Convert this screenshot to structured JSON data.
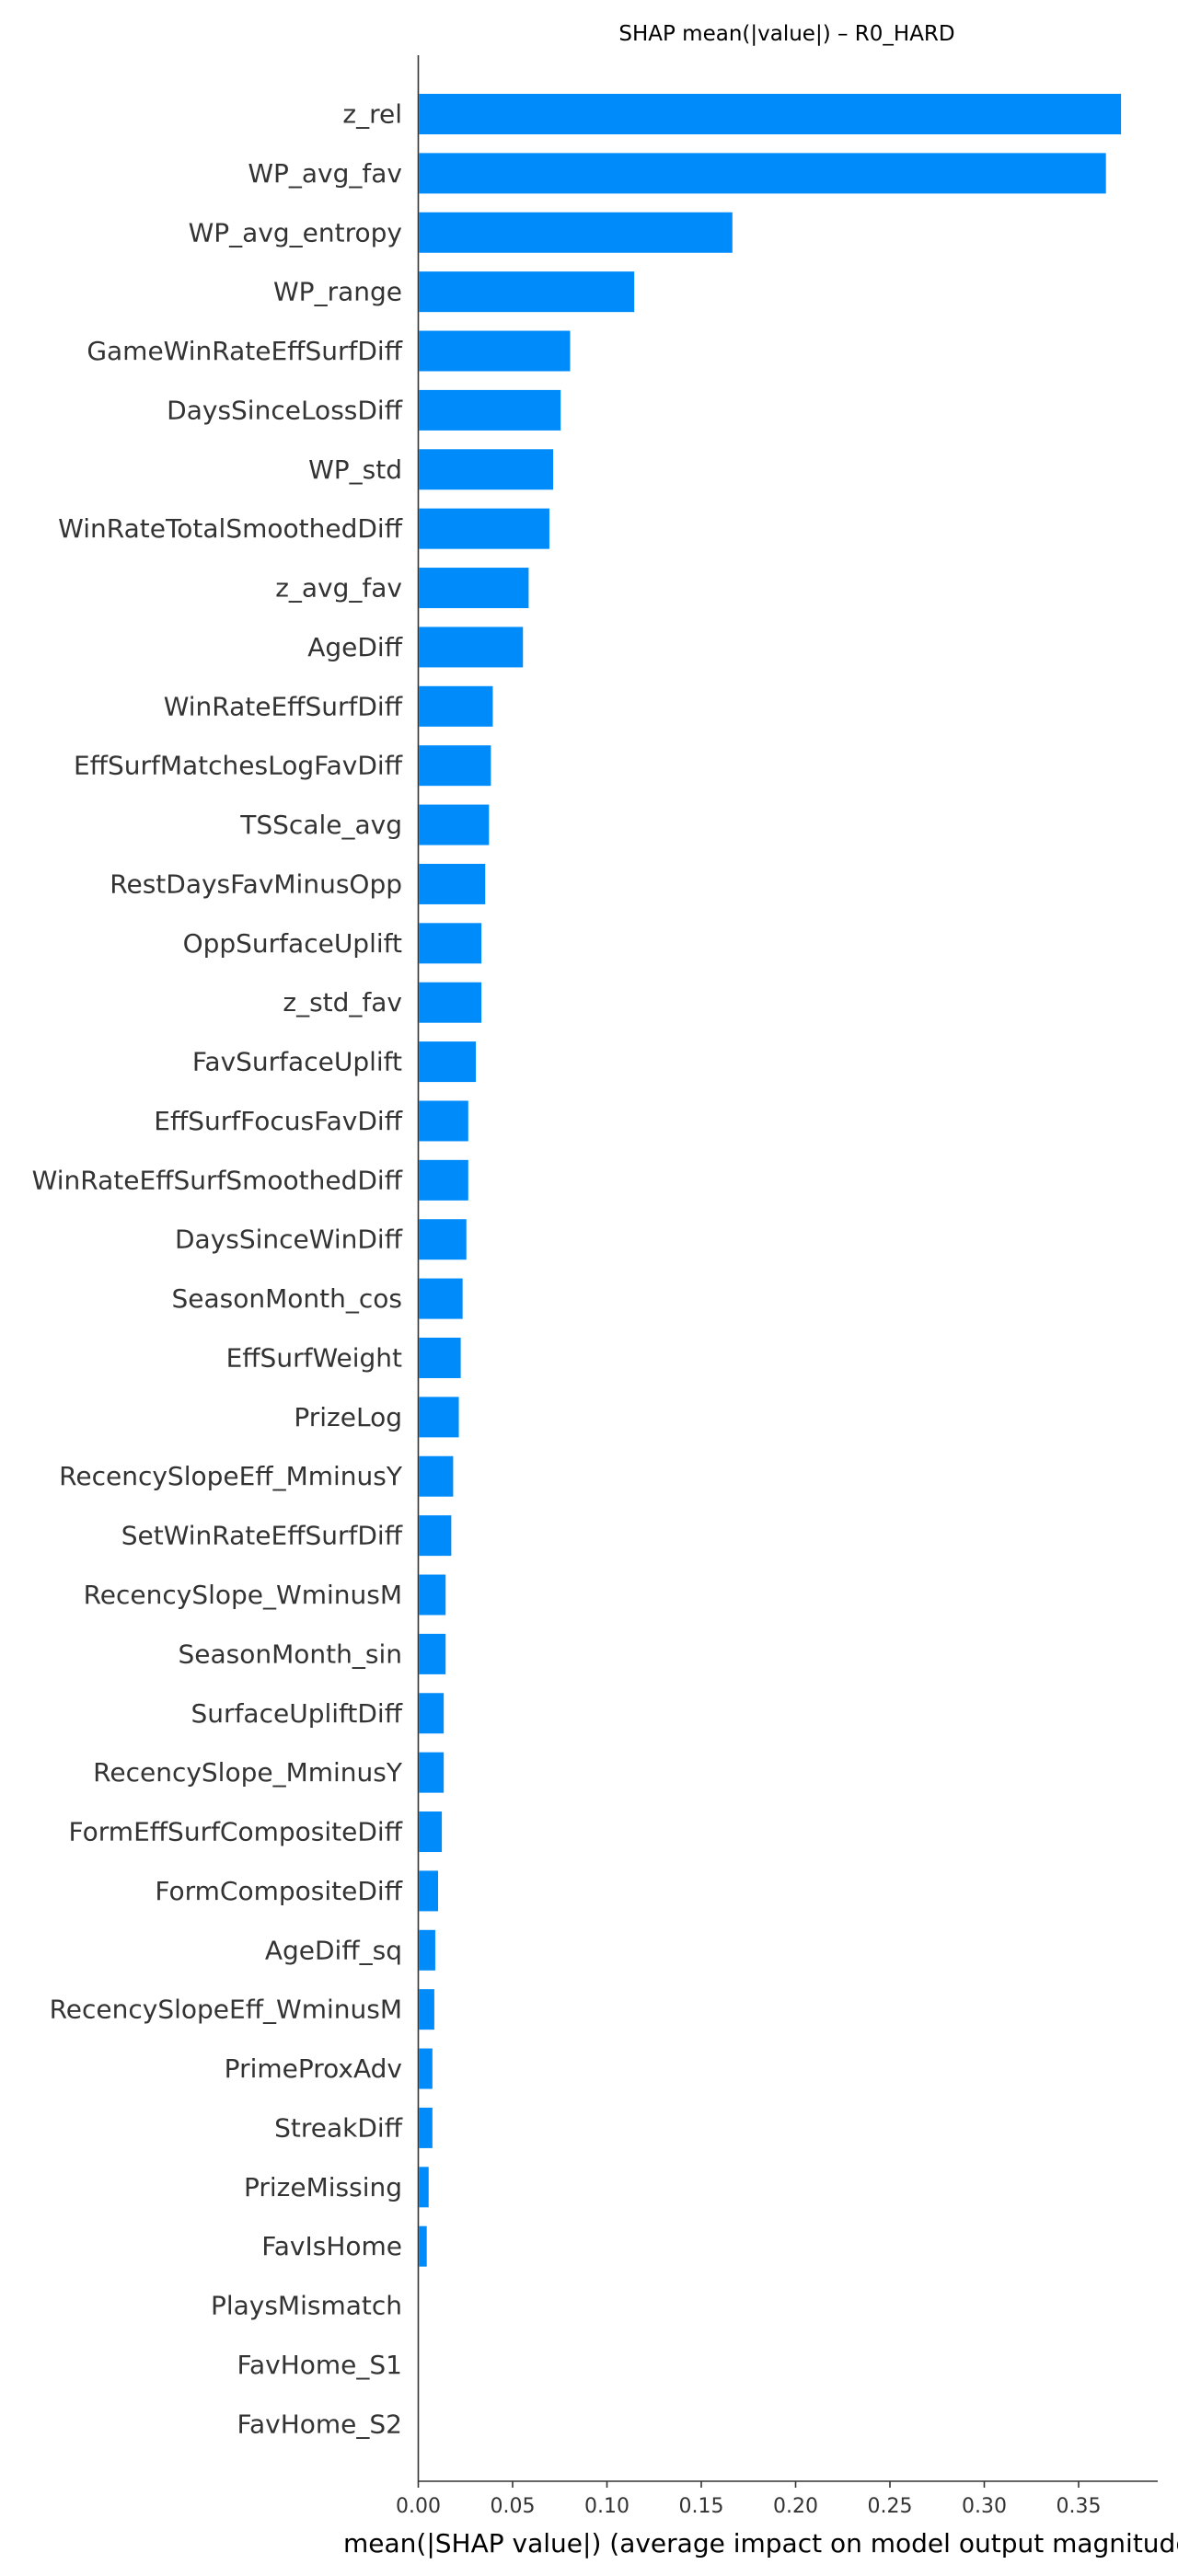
{
  "chart_data": {
    "type": "bar",
    "orientation": "horizontal",
    "title": "SHAP mean(|value|) – R0_HARD",
    "xlabel": "mean(|SHAP value|) (average impact on model output magnitude)",
    "ylabel": "",
    "xlim": [
      0,
      0.39
    ],
    "xticks": [
      0.0,
      0.05,
      0.1,
      0.15,
      0.2,
      0.25,
      0.3,
      0.35
    ],
    "xtick_labels": [
      "0.00",
      "0.05",
      "0.10",
      "0.15",
      "0.20",
      "0.25",
      "0.30",
      "0.35"
    ],
    "bar_color": "#008bfb",
    "grid": false,
    "legend": "none",
    "categories": [
      "z_rel",
      "WP_avg_fav",
      "WP_avg_entropy",
      "WP_range",
      "GameWinRateEffSurfDiff",
      "DaysSinceLossDiff",
      "WP_std",
      "WinRateTotalSmoothedDiff",
      "z_avg_fav",
      "AgeDiff",
      "WinRateEffSurfDiff",
      "EffSurfMatchesLogFavDiff",
      "TSScale_avg",
      "RestDaysFavMinusOpp",
      "OppSurfaceUplift",
      "z_std_fav",
      "FavSurfaceUplift",
      "EffSurfFocusFavDiff",
      "WinRateEffSurfSmoothedDiff",
      "DaysSinceWinDiff",
      "SeasonMonth_cos",
      "EffSurfWeight",
      "PrizeLog",
      "RecencySlopeEff_MminusY",
      "SetWinRateEffSurfDiff",
      "RecencySlope_WminusM",
      "SeasonMonth_sin",
      "SurfaceUpliftDiff",
      "RecencySlope_MminusY",
      "FormEffSurfCompositeDiff",
      "FormCompositeDiff",
      "AgeDiff_sq",
      "RecencySlopeEff_WminusM",
      "PrimeProxAdv",
      "StreakDiff",
      "PrizeMissing",
      "FavIsHome",
      "PlaysMismatch",
      "FavHome_S1",
      "FavHome_S2"
    ],
    "values": [
      0.372,
      0.364,
      0.166,
      0.114,
      0.08,
      0.075,
      0.071,
      0.069,
      0.058,
      0.055,
      0.039,
      0.038,
      0.037,
      0.035,
      0.033,
      0.033,
      0.03,
      0.026,
      0.026,
      0.025,
      0.023,
      0.022,
      0.021,
      0.018,
      0.017,
      0.014,
      0.014,
      0.013,
      0.013,
      0.012,
      0.01,
      0.0085,
      0.008,
      0.007,
      0.007,
      0.005,
      0.004,
      0.0,
      0.0,
      0.0
    ]
  }
}
